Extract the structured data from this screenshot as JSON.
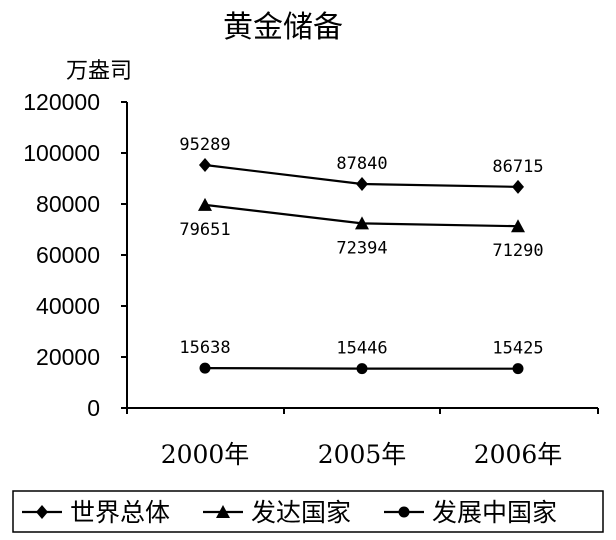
{
  "chart_data": {
    "type": "line",
    "title": "黄金储备",
    "ylabel": "万盎司",
    "xlabel": "",
    "categories": [
      "2000年",
      "2005年",
      "2006年"
    ],
    "ylim": [
      0,
      120000
    ],
    "yticks": [
      0,
      20000,
      40000,
      60000,
      80000,
      100000,
      120000
    ],
    "ytick_labels": [
      "0",
      "20000",
      "40000",
      "60000",
      "80000",
      "100000",
      "120000"
    ],
    "grid": false,
    "legend_position": "bottom",
    "series": [
      {
        "name": "世界总体",
        "marker": "diamond",
        "values": [
          95289,
          87840,
          86715
        ],
        "labels": [
          "95289",
          "87840",
          "86715"
        ],
        "label_position": "above"
      },
      {
        "name": "发达国家",
        "marker": "triangle",
        "values": [
          79651,
          72394,
          71290
        ],
        "labels": [
          "79651",
          "72394",
          "71290"
        ],
        "label_position": "below"
      },
      {
        "name": "发展中国家",
        "marker": "circle",
        "values": [
          15638,
          15446,
          15425
        ],
        "labels": [
          "15638",
          "15446",
          "15425"
        ],
        "label_position": "above"
      }
    ]
  }
}
